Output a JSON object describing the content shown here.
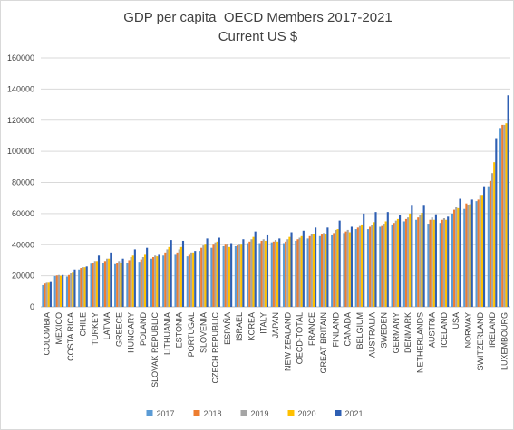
{
  "chart_data": {
    "type": "bar",
    "title": "GDP per capita  OECD Members 2017-2021",
    "subtitle": "Current US $",
    "xlabel": "",
    "ylabel": "",
    "ylim": [
      0,
      160000
    ],
    "yticks": [
      0,
      20000,
      40000,
      60000,
      80000,
      100000,
      120000,
      140000,
      160000
    ],
    "grid": true,
    "legend_position": "bottom",
    "categories": [
      "COLOMBIA",
      "MEXICO",
      "COSTA RICA",
      "CHILE",
      "TURKEY",
      "LATVIA",
      "GREECE",
      "HUNGARY",
      "POLAND",
      "SLOVAK REPUBLIC",
      "LITHUANIA",
      "ESTONIA",
      "PORTUGAL",
      "SLOVENIA",
      "CZECH REPUBLIC",
      "ESPAÑA",
      "ISRAEL",
      "KOREA",
      "ITALY",
      "JAPAN",
      "NEW ZEALAND",
      "OECD-TOTAL",
      "FRANCE",
      "GREAT BRITAIN",
      "FINLAND",
      "CANADA",
      "BELGIUM",
      "AUSTRALIA",
      "SWEDEN",
      "GERMANY",
      "DENMARK",
      "NETHERLANDS",
      "AUSTRIA",
      "ICELAND",
      "USA",
      "NORWAY",
      "SWITZERLAND",
      "IRELAND",
      "LUXEMBOURG"
    ],
    "series": [
      {
        "name": "2017",
        "color": "#5b9bd5",
        "values": [
          14000,
          19800,
          19500,
          24000,
          27800,
          28000,
          27500,
          28500,
          29000,
          31000,
          33000,
          33500,
          32500,
          36000,
          38000,
          39000,
          39000,
          41000,
          41000,
          41500,
          41000,
          42500,
          44000,
          45500,
          46000,
          47500,
          50000,
          50000,
          51500,
          53000,
          55000,
          56000,
          53500,
          54000,
          60000,
          63000,
          68000,
          77000,
          115000
        ]
      },
      {
        "name": "2018",
        "color": "#ed7d31",
        "values": [
          15000,
          20200,
          20500,
          25000,
          28000,
          29500,
          28500,
          30000,
          30500,
          32000,
          35000,
          35000,
          33500,
          38000,
          40000,
          40000,
          39500,
          42000,
          42500,
          42000,
          42000,
          43500,
          45500,
          46500,
          47500,
          48500,
          51000,
          51500,
          52000,
          54000,
          56500,
          57500,
          56000,
          56000,
          62500,
          66500,
          69000,
          81000,
          117000
        ]
      },
      {
        "name": "2019",
        "color": "#a5a5a5",
        "values": [
          15500,
          20500,
          21500,
          25500,
          29500,
          31000,
          29500,
          32000,
          32000,
          33000,
          37000,
          37000,
          35000,
          39500,
          41500,
          40500,
          40000,
          43500,
          43500,
          43000,
          43500,
          44500,
          47000,
          47500,
          49500,
          49500,
          52000,
          52500,
          53500,
          55500,
          57500,
          59000,
          57500,
          57000,
          64000,
          65500,
          72000,
          86000,
          117000
        ]
      },
      {
        "name": "2020",
        "color": "#ffc000",
        "values": [
          15500,
          20000,
          22000,
          25500,
          29500,
          31000,
          28500,
          33000,
          33500,
          32500,
          38500,
          38500,
          35000,
          40000,
          42000,
          38500,
          40000,
          45000,
          42500,
          42000,
          45000,
          45500,
          47000,
          46500,
          50000,
          48000,
          53000,
          54500,
          55000,
          56500,
          60000,
          60500,
          56000,
          56000,
          63500,
          66000,
          72000,
          93000,
          118000
        ]
      },
      {
        "name": "2021",
        "color": "#2e5fb3",
        "values": [
          16500,
          20500,
          24000,
          26000,
          33000,
          35000,
          31000,
          37000,
          38000,
          33500,
          43000,
          42500,
          36000,
          44000,
          44500,
          41000,
          43500,
          48500,
          46000,
          44000,
          48000,
          49000,
          51000,
          51000,
          55500,
          51500,
          60000,
          61000,
          61000,
          59000,
          65000,
          65000,
          59500,
          58000,
          69500,
          69000,
          77000,
          108500,
          136000
        ]
      }
    ]
  }
}
